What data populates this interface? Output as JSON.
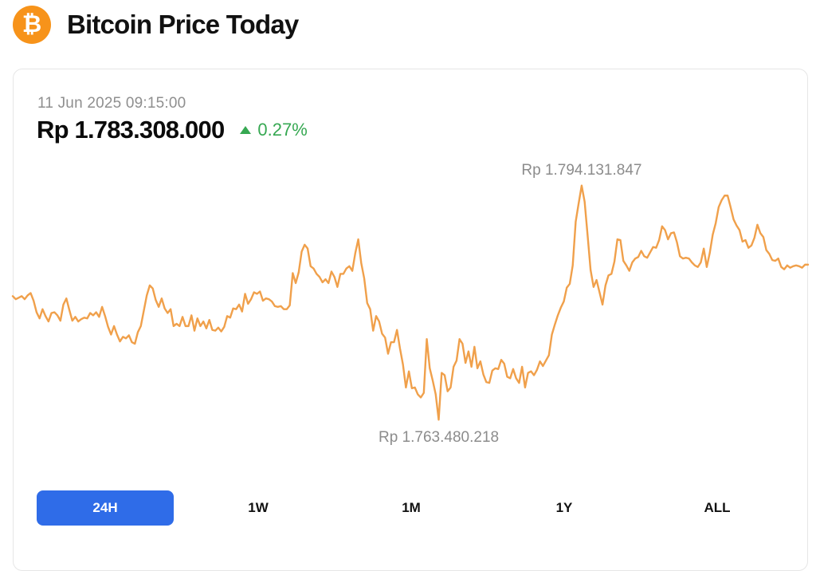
{
  "header": {
    "logo_icon": "bitcoin-icon",
    "logo_glyph": "₿",
    "title": "Bitcoin Price Today"
  },
  "summary": {
    "timestamp": "11 Jun 2025 09:15:00",
    "price": "Rp 1.783.308.000",
    "change": "0.27%",
    "change_direction": "up",
    "change_icon": "triangle-up-icon"
  },
  "colors": {
    "line": "#f0a04b",
    "accent": "#2f6ce8",
    "positive": "#36a852",
    "brand": "#f7931a"
  },
  "tabs": [
    {
      "label": "24H",
      "active": true
    },
    {
      "label": "1W",
      "active": false
    },
    {
      "label": "1M",
      "active": false
    },
    {
      "label": "1Y",
      "active": false
    },
    {
      "label": "ALL",
      "active": false
    }
  ],
  "chart_data": {
    "type": "line",
    "title": "",
    "xlabel": "",
    "ylabel": "",
    "grid": false,
    "legend": "none",
    "ylim": [
      1760100000,
      1797500000
    ],
    "max_label": "Rp 1.794.131.847",
    "min_label": "Rp 1.763.480.218",
    "max_value": 1794131847,
    "min_value": 1763480218,
    "series": [
      {
        "values": [
          1779700000,
          1779300000,
          1779500000,
          1779700000,
          1779300000,
          1779800000,
          1780100000,
          1779100000,
          1777600000,
          1776800000,
          1778000000,
          1777100000,
          1776400000,
          1777500000,
          1777600000,
          1777200000,
          1776500000,
          1778600000,
          1779400000,
          1777900000,
          1776500000,
          1777000000,
          1776400000,
          1776700000,
          1776900000,
          1776800000,
          1777500000,
          1777200000,
          1777600000,
          1777000000,
          1778300000,
          1777100000,
          1775700000,
          1774700000,
          1775800000,
          1774700000,
          1773800000,
          1774400000,
          1774200000,
          1774600000,
          1773700000,
          1773500000,
          1775000000,
          1775800000,
          1777800000,
          1779800000,
          1781100000,
          1780700000,
          1779200000,
          1778300000,
          1779400000,
          1778100000,
          1777500000,
          1778000000,
          1775800000,
          1776100000,
          1775800000,
          1777000000,
          1775800000,
          1775800000,
          1777200000,
          1775200000,
          1776800000,
          1775800000,
          1776400000,
          1775500000,
          1776600000,
          1775300000,
          1775200000,
          1775600000,
          1775100000,
          1775700000,
          1777100000,
          1776900000,
          1778100000,
          1778000000,
          1778600000,
          1777700000,
          1780000000,
          1778700000,
          1779300000,
          1780200000,
          1780000000,
          1780300000,
          1779100000,
          1779400000,
          1779300000,
          1779000000,
          1778400000,
          1778300000,
          1778400000,
          1778000000,
          1778000000,
          1778500000,
          1782700000,
          1781400000,
          1782800000,
          1785500000,
          1786400000,
          1785900000,
          1783600000,
          1783300000,
          1782600000,
          1782200000,
          1781500000,
          1781900000,
          1781400000,
          1782900000,
          1782200000,
          1780900000,
          1782600000,
          1782600000,
          1783300000,
          1783600000,
          1783000000,
          1785300000,
          1787100000,
          1784000000,
          1782000000,
          1778800000,
          1778000000,
          1775200000,
          1777100000,
          1776400000,
          1774800000,
          1774300000,
          1772200000,
          1773700000,
          1773700000,
          1775300000,
          1772900000,
          1770800000,
          1767800000,
          1769900000,
          1767700000,
          1767800000,
          1766900000,
          1766500000,
          1767100000,
          1774100000,
          1770300000,
          1768700000,
          1766900000,
          1763600000,
          1769700000,
          1769400000,
          1767300000,
          1767800000,
          1770500000,
          1771300000,
          1774100000,
          1773500000,
          1771000000,
          1772500000,
          1770500000,
          1773100000,
          1770300000,
          1771200000,
          1769500000,
          1768500000,
          1768400000,
          1770000000,
          1770300000,
          1770200000,
          1771400000,
          1770900000,
          1769200000,
          1769000000,
          1770200000,
          1769000000,
          1768400000,
          1770500000,
          1767800000,
          1769700000,
          1769900000,
          1769400000,
          1770100000,
          1771200000,
          1770600000,
          1771300000,
          1772000000,
          1774700000,
          1776000000,
          1777200000,
          1778200000,
          1779000000,
          1780800000,
          1781300000,
          1783700000,
          1789400000,
          1791800000,
          1794100000,
          1792000000,
          1787600000,
          1783100000,
          1780900000,
          1781800000,
          1780200000,
          1778600000,
          1781100000,
          1782400000,
          1782600000,
          1784200000,
          1787100000,
          1787000000,
          1784300000,
          1783700000,
          1783000000,
          1784100000,
          1784600000,
          1784800000,
          1785600000,
          1784900000,
          1784700000,
          1785400000,
          1786100000,
          1786000000,
          1787000000,
          1788800000,
          1788300000,
          1787100000,
          1787900000,
          1788000000,
          1786700000,
          1784900000,
          1784600000,
          1784700000,
          1784600000,
          1784100000,
          1783700000,
          1783500000,
          1784100000,
          1785900000,
          1783500000,
          1785300000,
          1787700000,
          1789200000,
          1791300000,
          1792200000,
          1792800000,
          1792800000,
          1791300000,
          1789700000,
          1788900000,
          1788300000,
          1786800000,
          1787000000,
          1786000000,
          1786300000,
          1787300000,
          1789000000,
          1787900000,
          1787400000,
          1785700000,
          1785200000,
          1784400000,
          1784300000,
          1784600000,
          1783500000,
          1783200000,
          1783700000,
          1783400000,
          1783600000,
          1783700000,
          1783600000,
          1783400000,
          1783800000,
          1783800000
        ]
      }
    ]
  }
}
